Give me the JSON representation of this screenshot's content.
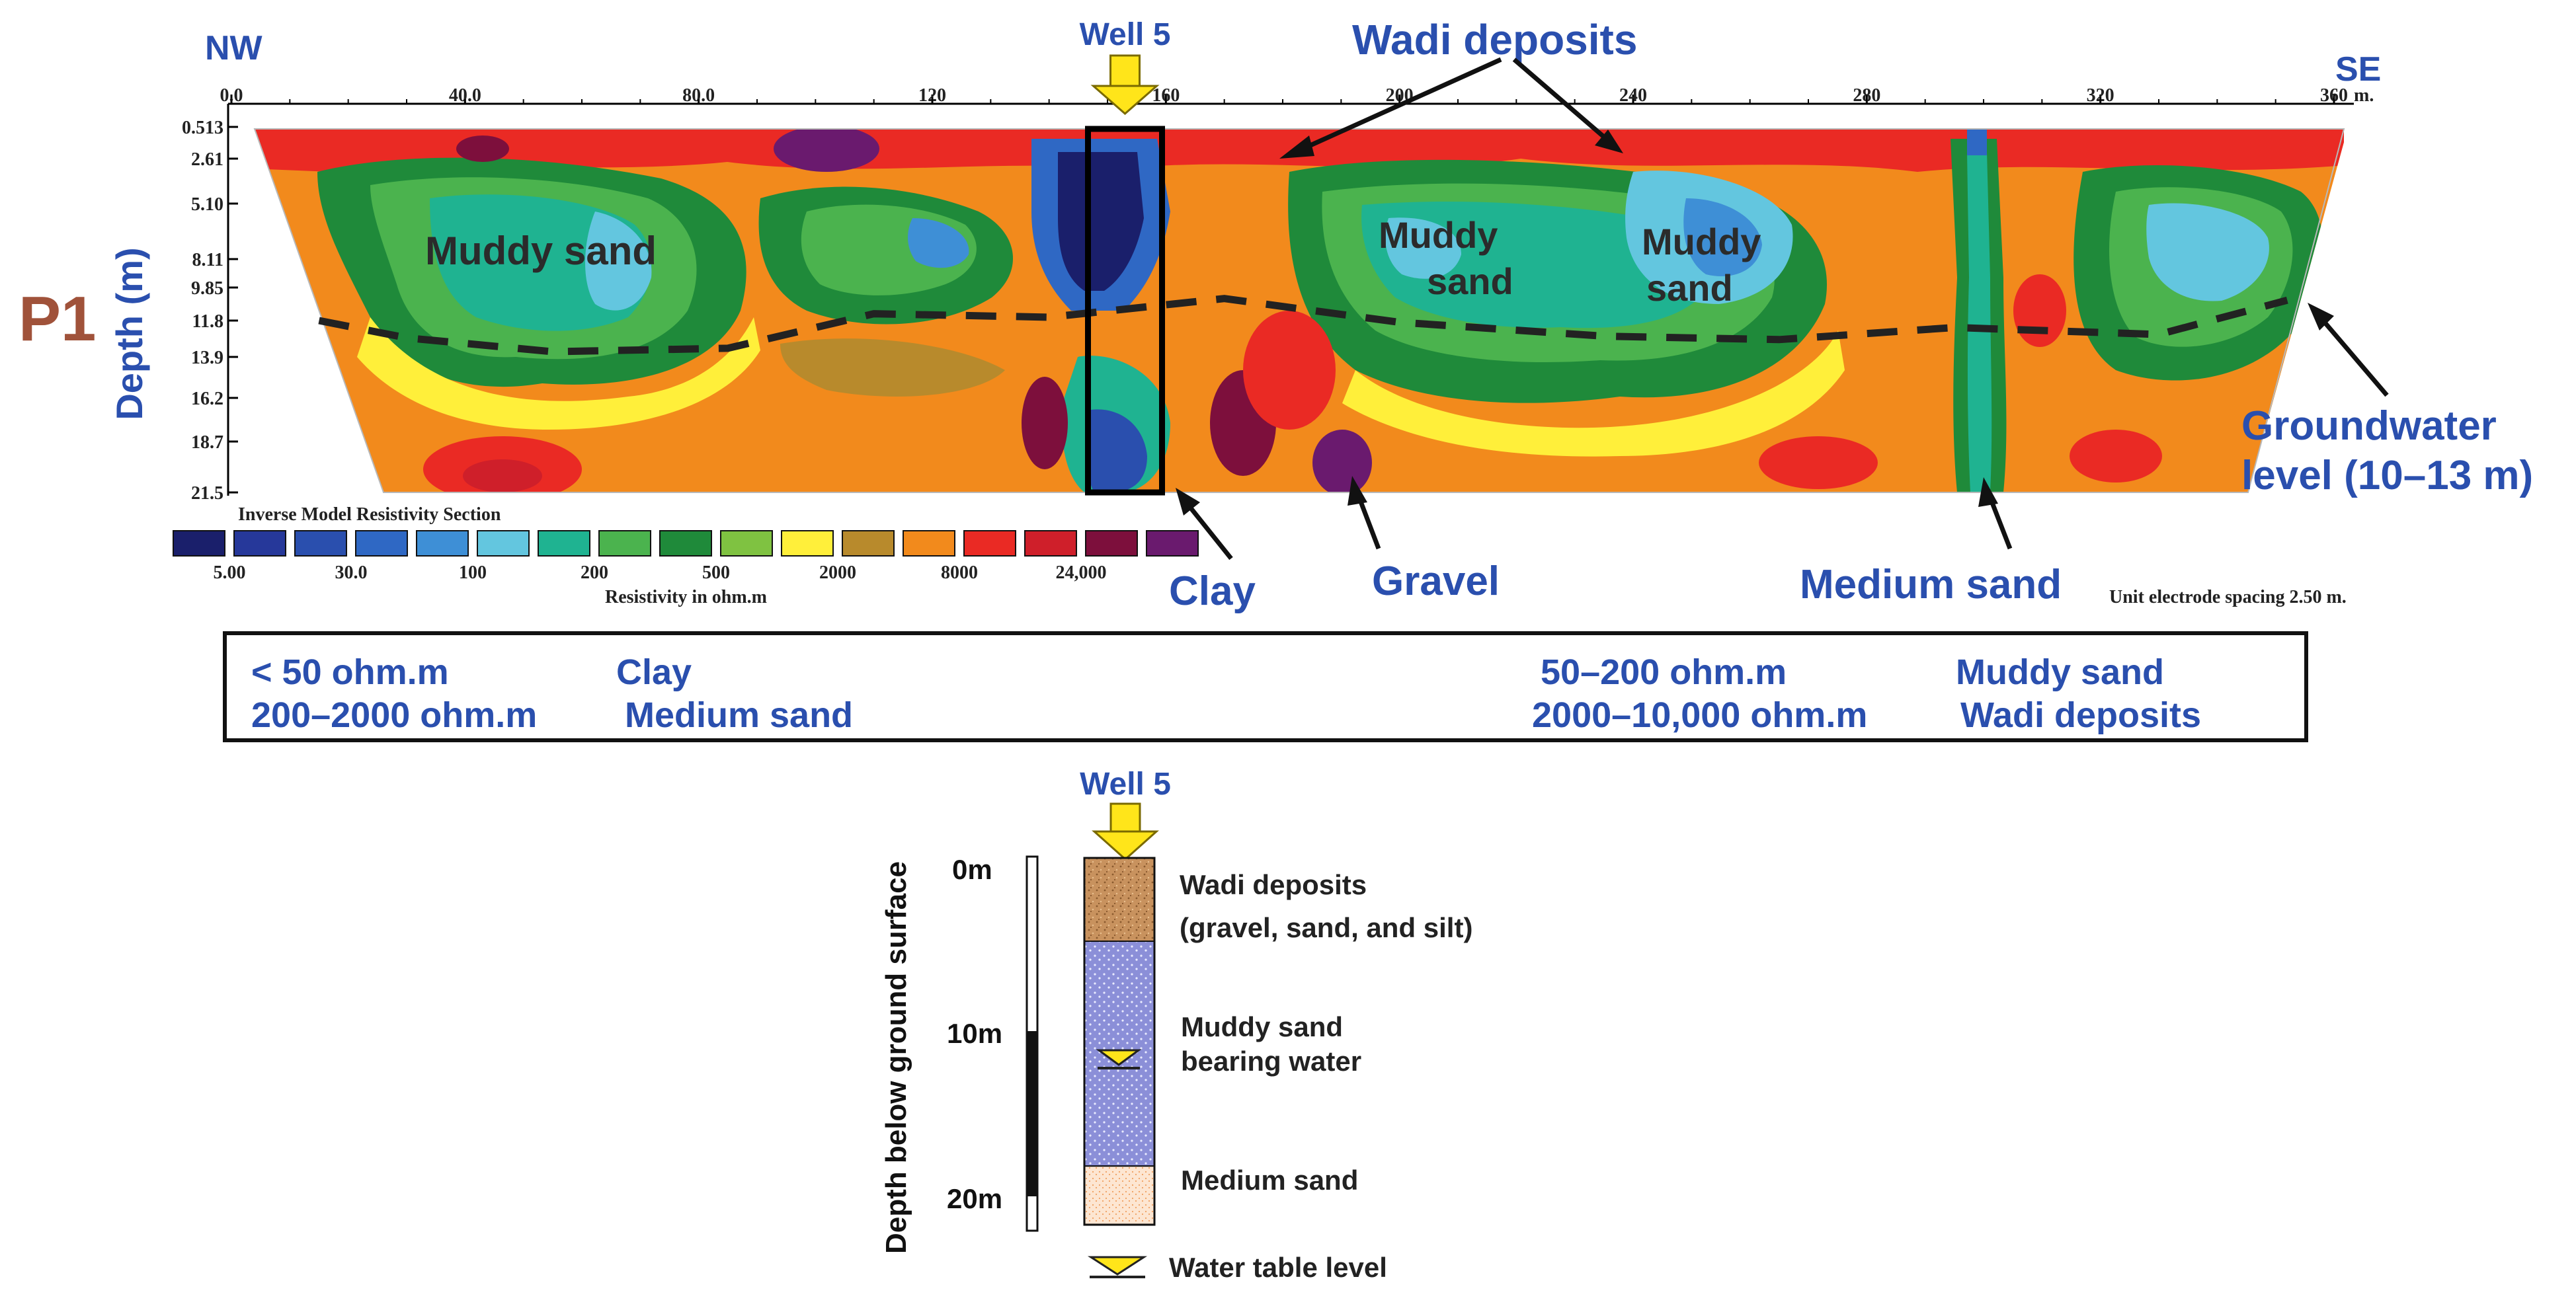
{
  "profile": {
    "label": "P1",
    "nw": "NW",
    "se": "SE",
    "depth_axis_label": "Depth (m)",
    "x_ticks": [
      "0.0",
      "40.0",
      "80.0",
      "120",
      "160",
      "200",
      "240",
      "280",
      "320",
      "360"
    ],
    "x_tick_values": [
      0,
      40,
      80,
      120,
      160,
      200,
      240,
      280,
      320,
      360
    ],
    "x_unit": "m.",
    "depth_ticks": [
      "0.513",
      "2.61",
      "5.10",
      "8.11",
      "9.85",
      "11.8",
      "13.9",
      "16.2",
      "18.7",
      "21.5"
    ],
    "depth_tick_values": [
      0.513,
      2.61,
      5.1,
      8.11,
      9.85,
      11.8,
      13.9,
      16.2,
      18.7,
      21.5
    ],
    "well_label": "Well 5",
    "well_position_m": 153,
    "groundwater_depths_m": [
      [
        15,
        11.8
      ],
      [
        30,
        12.8
      ],
      [
        55,
        13.6
      ],
      [
        85,
        13.4
      ],
      [
        110,
        11.4
      ],
      [
        140,
        11.6
      ],
      [
        170,
        10.5
      ],
      [
        200,
        11.9
      ],
      [
        235,
        12.7
      ],
      [
        265,
        12.9
      ],
      [
        295,
        12.2
      ],
      [
        330,
        12.6
      ],
      [
        352,
        10.6
      ]
    ]
  },
  "annotations": {
    "muddy_sand_left": "Muddy sand",
    "muddy_sand_mid_1": "Muddy",
    "muddy_sand_mid_2": "sand",
    "muddy_sand_right_1": "Muddy",
    "muddy_sand_right_2": "sand",
    "wadi_deposits": "Wadi deposits",
    "clay": "Clay",
    "gravel": "Gravel",
    "medium_sand": "Medium sand",
    "groundwater_1": "Groundwater",
    "groundwater_2": "level (10–13 m)"
  },
  "colorbar": {
    "title": "Inverse Model Resistivity Section",
    "caption": "Resistivity in ohm.m",
    "tick_labels": [
      "5.00",
      "30.0",
      "100",
      "200",
      "500",
      "2000",
      "8000",
      "24,000"
    ],
    "colors": [
      "#1a1f6b",
      "#26389a",
      "#2a4fae",
      "#2f68c4",
      "#3e8fd6",
      "#63c6df",
      "#1fb391",
      "#4bb34e",
      "#1f8a3a",
      "#7fc241",
      "#ffef3a",
      "#b88a2c",
      "#f28a1c",
      "#ea2a24",
      "#cf1f2a",
      "#7d0f3c",
      "#6a1a6e"
    ]
  },
  "electrode_note": "Unit electrode spacing 2.50 m.",
  "legend_box": {
    "row1_col1": "< 50 ohm.m",
    "row1_col2": "Clay",
    "row1_col3": "50–200 ohm.m",
    "row1_col4": "Muddy sand",
    "row2_col1": "200–2000 ohm.m",
    "row2_col2": "Medium sand",
    "row2_col3": "2000–10,000 ohm.m",
    "row2_col4": "Wadi deposits"
  },
  "well_log": {
    "title": "Well 5",
    "axis_label": "Depth below ground surface",
    "depth_labels": [
      "0m",
      "10m",
      "20m"
    ],
    "layers": [
      {
        "top_m": 0,
        "bottom_m": 5,
        "color": "#c8925e",
        "label_1": "Wadi deposits",
        "label_2": "(gravel, sand, and silt)"
      },
      {
        "top_m": 5,
        "bottom_m": 18.5,
        "color": "#8b8fd8",
        "label_1": "Muddy sand",
        "label_2": "bearing water"
      },
      {
        "top_m": 18.5,
        "bottom_m": 22,
        "color": "#fde6d2",
        "label_1": "Medium sand",
        "label_2": ""
      }
    ],
    "water_table_m": 12.5,
    "water_table_legend": "Water table level"
  }
}
